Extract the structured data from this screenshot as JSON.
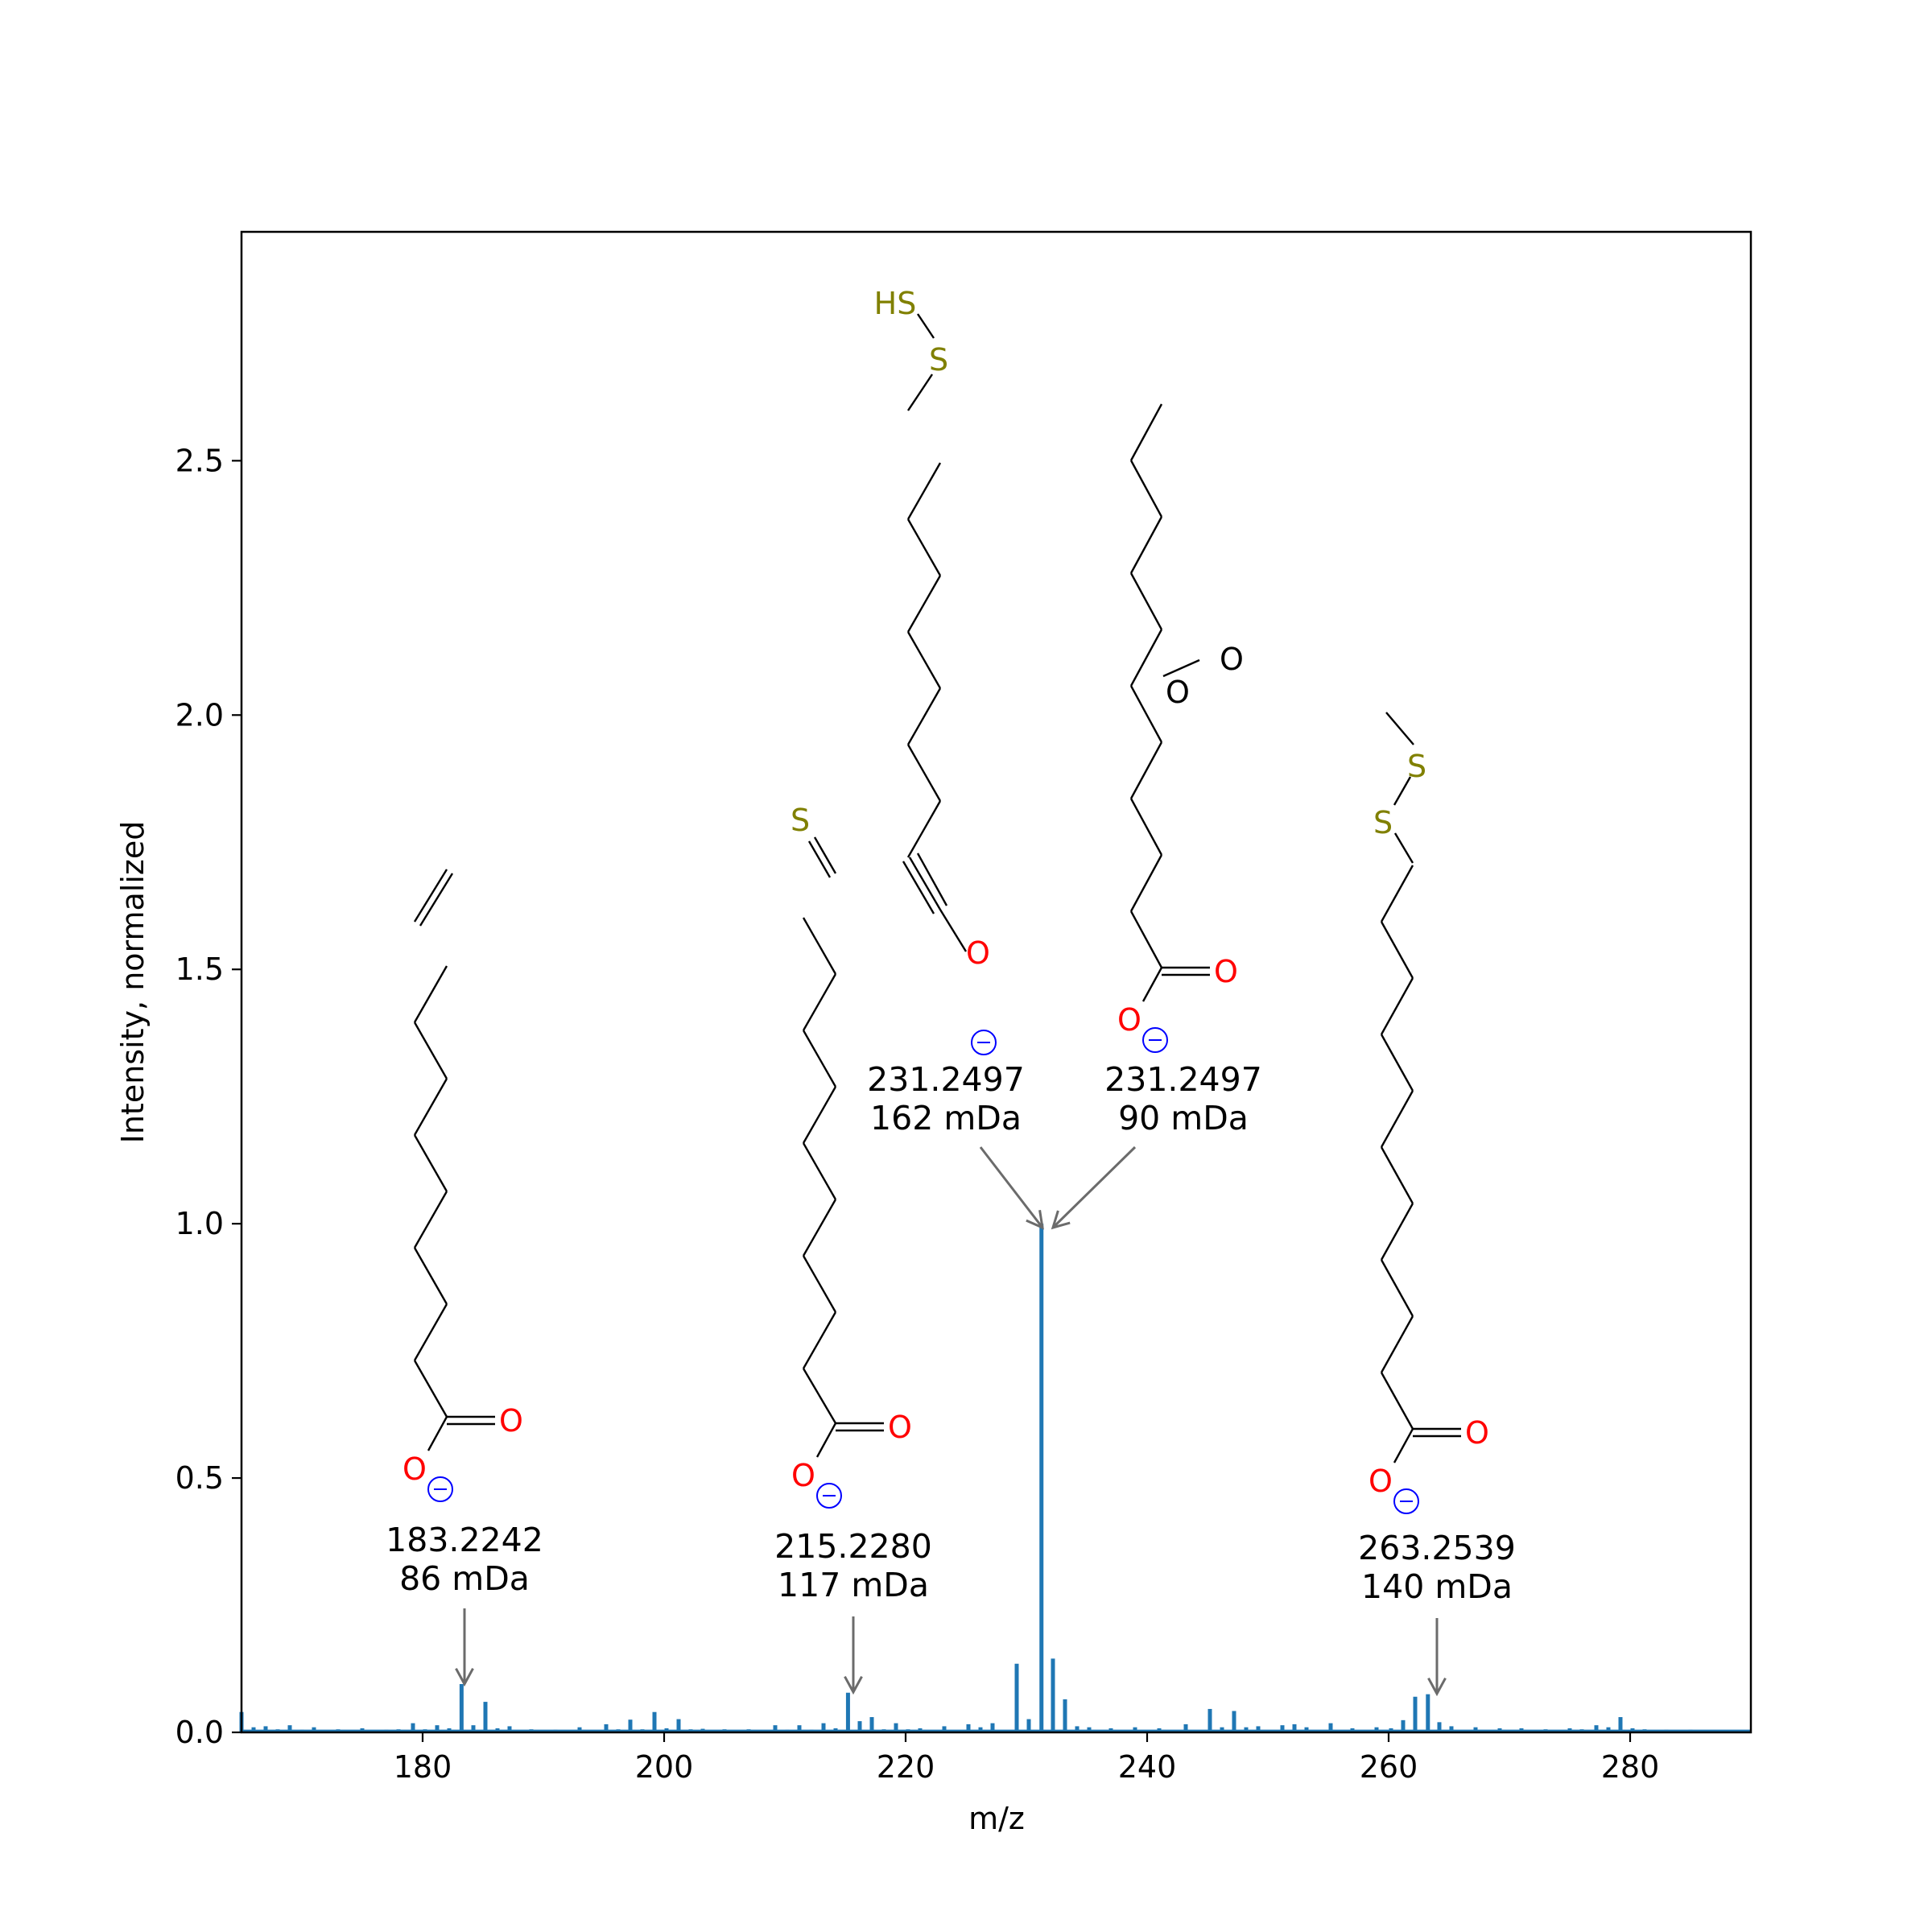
{
  "chart_data": {
    "type": "bar",
    "xlabel": "m/z",
    "ylabel": "Intensity, normalized",
    "xlim": [
      165,
      290
    ],
    "ylim": [
      0,
      2.95
    ],
    "x_ticks": [
      "180",
      "200",
      "220",
      "240",
      "260",
      "280"
    ],
    "y_ticks": [
      "0.0",
      "0.5",
      "1.0",
      "1.5",
      "2.0",
      "2.5"
    ],
    "series_color": "#1f77b4",
    "peaks": [
      {
        "x": 165.0,
        "y": 0.04
      },
      {
        "x": 166.0,
        "y": 0.01
      },
      {
        "x": 167.0,
        "y": 0.012
      },
      {
        "x": 168.0,
        "y": 0.006
      },
      {
        "x": 169.0,
        "y": 0.014
      },
      {
        "x": 170.0,
        "y": 0.005
      },
      {
        "x": 171.0,
        "y": 0.01
      },
      {
        "x": 173.0,
        "y": 0.006
      },
      {
        "x": 175.0,
        "y": 0.008
      },
      {
        "x": 177.0,
        "y": 0.005
      },
      {
        "x": 178.0,
        "y": 0.006
      },
      {
        "x": 179.2,
        "y": 0.018
      },
      {
        "x": 180.2,
        "y": 0.006
      },
      {
        "x": 181.2,
        "y": 0.014
      },
      {
        "x": 182.2,
        "y": 0.008
      },
      {
        "x": 183.2242,
        "y": 0.095
      },
      {
        "x": 184.2,
        "y": 0.014
      },
      {
        "x": 185.2,
        "y": 0.06
      },
      {
        "x": 186.2,
        "y": 0.008
      },
      {
        "x": 187.2,
        "y": 0.012
      },
      {
        "x": 189.0,
        "y": 0.006
      },
      {
        "x": 191.0,
        "y": 0.005
      },
      {
        "x": 193.0,
        "y": 0.01
      },
      {
        "x": 194.0,
        "y": 0.004
      },
      {
        "x": 195.2,
        "y": 0.016
      },
      {
        "x": 196.2,
        "y": 0.006
      },
      {
        "x": 197.2,
        "y": 0.025
      },
      {
        "x": 198.2,
        "y": 0.006
      },
      {
        "x": 199.2,
        "y": 0.04
      },
      {
        "x": 200.2,
        "y": 0.008
      },
      {
        "x": 201.2,
        "y": 0.026
      },
      {
        "x": 202.2,
        "y": 0.006
      },
      {
        "x": 203.2,
        "y": 0.007
      },
      {
        "x": 205.0,
        "y": 0.006
      },
      {
        "x": 207.0,
        "y": 0.006
      },
      {
        "x": 208.0,
        "y": 0.004
      },
      {
        "x": 209.2,
        "y": 0.014
      },
      {
        "x": 210.2,
        "y": 0.005
      },
      {
        "x": 211.2,
        "y": 0.014
      },
      {
        "x": 212.2,
        "y": 0.005
      },
      {
        "x": 213.2,
        "y": 0.018
      },
      {
        "x": 214.2,
        "y": 0.008
      },
      {
        "x": 215.228,
        "y": 0.078
      },
      {
        "x": 216.2,
        "y": 0.022
      },
      {
        "x": 217.2,
        "y": 0.03
      },
      {
        "x": 218.2,
        "y": 0.006
      },
      {
        "x": 219.2,
        "y": 0.018
      },
      {
        "x": 220.2,
        "y": 0.006
      },
      {
        "x": 221.2,
        "y": 0.008
      },
      {
        "x": 223.2,
        "y": 0.012
      },
      {
        "x": 225.2,
        "y": 0.016
      },
      {
        "x": 226.2,
        "y": 0.01
      },
      {
        "x": 227.2,
        "y": 0.018
      },
      {
        "x": 229.2,
        "y": 0.135
      },
      {
        "x": 230.2,
        "y": 0.026
      },
      {
        "x": 231.2497,
        "y": 1.0
      },
      {
        "x": 232.2,
        "y": 0.145
      },
      {
        "x": 233.2,
        "y": 0.065
      },
      {
        "x": 234.2,
        "y": 0.012
      },
      {
        "x": 235.2,
        "y": 0.01
      },
      {
        "x": 237.0,
        "y": 0.008
      },
      {
        "x": 239.0,
        "y": 0.01
      },
      {
        "x": 241.0,
        "y": 0.008
      },
      {
        "x": 243.2,
        "y": 0.016
      },
      {
        "x": 245.2,
        "y": 0.046
      },
      {
        "x": 246.2,
        "y": 0.01
      },
      {
        "x": 247.2,
        "y": 0.042
      },
      {
        "x": 248.2,
        "y": 0.01
      },
      {
        "x": 249.2,
        "y": 0.012
      },
      {
        "x": 251.2,
        "y": 0.014
      },
      {
        "x": 252.2,
        "y": 0.016
      },
      {
        "x": 253.2,
        "y": 0.01
      },
      {
        "x": 255.2,
        "y": 0.018
      },
      {
        "x": 257.0,
        "y": 0.008
      },
      {
        "x": 259.0,
        "y": 0.01
      },
      {
        "x": 260.2,
        "y": 0.008
      },
      {
        "x": 261.2,
        "y": 0.024
      },
      {
        "x": 262.2,
        "y": 0.07
      },
      {
        "x": 263.2539,
        "y": 0.075
      },
      {
        "x": 264.2,
        "y": 0.02
      },
      {
        "x": 265.2,
        "y": 0.012
      },
      {
        "x": 267.2,
        "y": 0.01
      },
      {
        "x": 269.2,
        "y": 0.008
      },
      {
        "x": 271.0,
        "y": 0.008
      },
      {
        "x": 273.0,
        "y": 0.006
      },
      {
        "x": 275.0,
        "y": 0.008
      },
      {
        "x": 276.0,
        "y": 0.006
      },
      {
        "x": 277.2,
        "y": 0.014
      },
      {
        "x": 278.2,
        "y": 0.01
      },
      {
        "x": 279.2,
        "y": 0.03
      },
      {
        "x": 280.2,
        "y": 0.008
      },
      {
        "x": 281.2,
        "y": 0.006
      },
      {
        "x": 283.0,
        "y": 0.005
      },
      {
        "x": 285.0,
        "y": 0.005
      },
      {
        "x": 287.0,
        "y": 0.004
      },
      {
        "x": 289.0,
        "y": 0.004
      }
    ],
    "annotations": [
      {
        "x": 183.2242,
        "mz": "183.2242",
        "err": "86 mDa"
      },
      {
        "x": 215.228,
        "mz": "215.2280",
        "err": "117 mDa"
      },
      {
        "x": 231.2497,
        "mz": "231.2497",
        "err": "162 mDa"
      },
      {
        "x": 231.2497,
        "mz": "231.2497",
        "err": "90 mDa"
      },
      {
        "x": 263.2539,
        "mz": "263.2539",
        "err": "140 mDa"
      }
    ],
    "atom_labels": {
      "O": "O",
      "S": "S",
      "HS": "HS"
    }
  }
}
